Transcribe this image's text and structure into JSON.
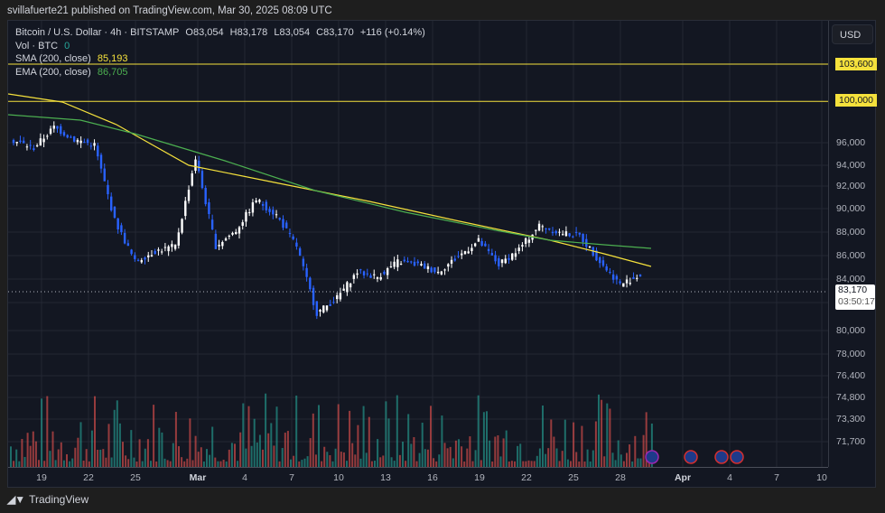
{
  "header": {
    "publisher_line": "svillafuerte21 published on TradingView.com, Mar 30, 2025 08:09 UTC"
  },
  "legend": {
    "symbol": "Bitcoin / U.S. Dollar · 4h · BITSTAMP",
    "open": "O83,054",
    "high": "H83,178",
    "low": "L83,054",
    "close": "C83,170",
    "change": "+116 (+0.14%)",
    "vol_label": "Vol · BTC",
    "vol_value": "0",
    "sma_label": "SMA (200, close)",
    "sma_value": "85,193",
    "ema_label": "EMA (200, close)",
    "ema_value": "86,705"
  },
  "price_axis": {
    "currency": "USD",
    "ticks": [
      "96,000",
      "94,000",
      "92,000",
      "90,000",
      "88,000",
      "86,000",
      "84,000",
      "80,000",
      "78,000",
      "76,400",
      "74,800",
      "73,300",
      "71,700"
    ],
    "hlines": [
      "103,600",
      "100,000"
    ],
    "current_price": "83,170",
    "countdown": "03:50:17"
  },
  "time_axis": {
    "ticks": [
      "19",
      "22",
      "25",
      "Mar",
      "4",
      "7",
      "10",
      "13",
      "16",
      "19",
      "22",
      "25",
      "28",
      "Apr",
      "4",
      "7",
      "10"
    ]
  },
  "footer": {
    "brand": "TradingView"
  },
  "colors": {
    "bg": "#131722",
    "up": "#ffffff",
    "down": "#2962ff",
    "sma": "#f5e13c",
    "ema": "#4caf50",
    "hline": "#f5e13c",
    "vol_up": "#26a69a",
    "vol_down": "#ef5350"
  },
  "chart_data": {
    "type": "candlestick",
    "title": "Bitcoin / U.S. Dollar · 4h · BITSTAMP",
    "x": [
      "Feb 17",
      "Feb 19",
      "Feb 21",
      "Feb 22",
      "Feb 24",
      "Feb 25",
      "Feb 27",
      "Feb 28",
      "Mar 1",
      "Mar 2",
      "Mar 3",
      "Mar 4",
      "Mar 6",
      "Mar 7",
      "Mar 8",
      "Mar 10",
      "Mar 11",
      "Mar 12",
      "Mar 13",
      "Mar 14",
      "Mar 16",
      "Mar 18",
      "Mar 19",
      "Mar 20",
      "Mar 22",
      "Mar 24",
      "Mar 25",
      "Mar 26",
      "Mar 27",
      "Mar 28",
      "Mar 29",
      "Mar 30"
    ],
    "close": [
      96200,
      95500,
      97500,
      96300,
      95800,
      88500,
      84500,
      85500,
      86000,
      94500,
      86000,
      87500,
      90500,
      89000,
      86000,
      79500,
      81000,
      83500,
      83000,
      84500,
      84200,
      83500,
      85000,
      86500,
      84200,
      85700,
      88000,
      87300,
      87000,
      84500,
      82300,
      83170
    ],
    "series": [
      {
        "name": "SMA (200, close)",
        "last": 85193
      },
      {
        "name": "EMA (200, close)",
        "last": 86705
      }
    ],
    "hlines": [
      103600,
      100000
    ],
    "ylabel": "USD",
    "ylim": [
      70500,
      106000
    ]
  }
}
